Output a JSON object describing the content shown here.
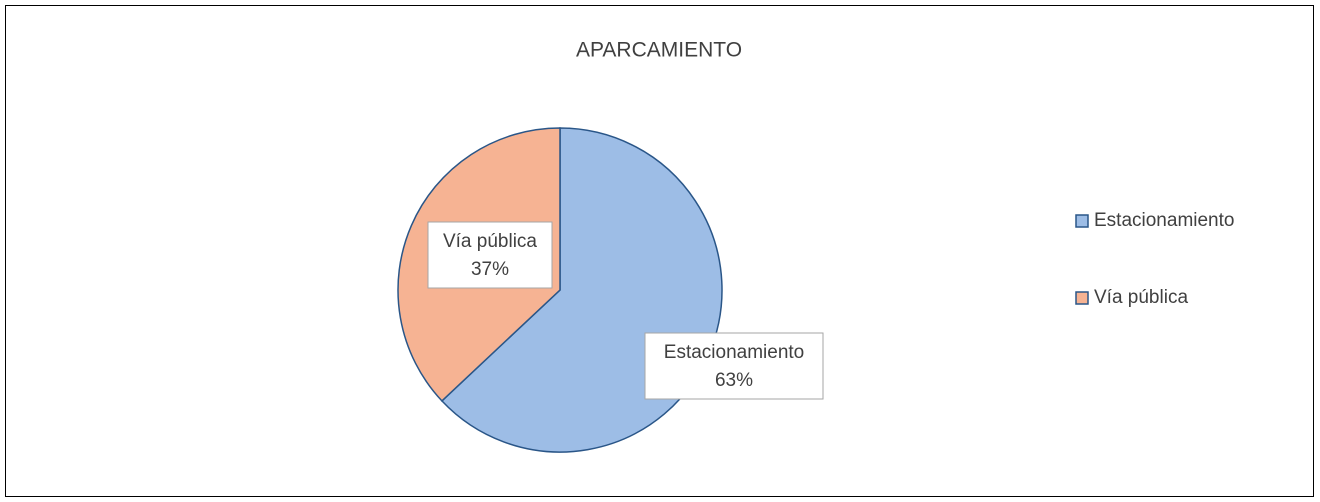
{
  "chart_data": {
    "type": "pie",
    "title": "APARCAMIENTO",
    "categories": [
      "Estacionamiento",
      "Vía pública"
    ],
    "values": [
      63,
      37
    ],
    "value_labels": [
      "63%",
      "37%"
    ],
    "colors": [
      "#9dbde6",
      "#f6b393"
    ],
    "legend": "right"
  }
}
